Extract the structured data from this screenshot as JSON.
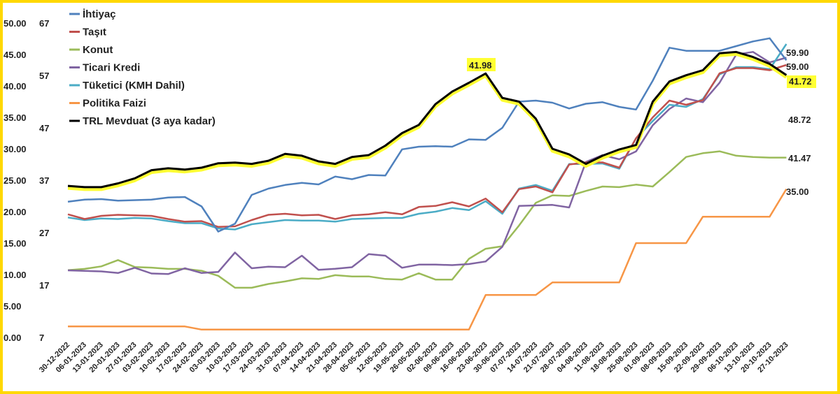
{
  "chart_data": {
    "type": "line",
    "title": "",
    "xlabel": "",
    "ylabel": "",
    "left_axis": {
      "ticks": [
        "50.00",
        "45.00",
        "40.00",
        "35.00",
        "30.00",
        "25.00",
        "20.00",
        "15.00",
        "10.00",
        "5.00",
        "0.00"
      ],
      "ylim": [
        0,
        50
      ]
    },
    "right_axis": {
      "ticks": [
        "67",
        "57",
        "47",
        "37",
        "27",
        "17",
        "7"
      ],
      "ylim": [
        7,
        67
      ]
    },
    "x": [
      "30-12-2022",
      "06-01-2023",
      "13-01-2023",
      "20-01-2023",
      "27-01-2023",
      "03-02-2023",
      "10-02-2023",
      "17-02-2023",
      "24-02-2023",
      "03-03-2023",
      "10-03-2023",
      "17-03-2023",
      "24-03-2023",
      "31-03-2023",
      "07-04-2023",
      "14-04-2023",
      "21-04-2023",
      "28-04-2023",
      "05-05-2023",
      "12-05-2023",
      "19-05-2023",
      "26-05-2023",
      "02-06-2023",
      "09-06-2023",
      "16-06-2023",
      "23-06-2023",
      "30-06-2023",
      "07-07-2023",
      "14-07-2023",
      "21-07-2023",
      "28-07-2023",
      "04-08-2023",
      "11-08-2023",
      "18-08-2023",
      "25-08-2023",
      "01-09-2023",
      "08-09-2023",
      "15-09-2023",
      "22-09-2023",
      "29-09-2023",
      "06-10-2023",
      "13-10-2023",
      "20-10-2023",
      "27-10-2023"
    ],
    "legend_position": "top-left",
    "grid": false,
    "series": [
      {
        "name": "İhtiyaç",
        "axis": "right",
        "color": "#4f81bd",
        "values": [
          32.9,
          33.3,
          33.4,
          33.1,
          33.2,
          33.3,
          33.7,
          33.8,
          32.0,
          27.2,
          28.7,
          34.2,
          35.4,
          36.1,
          36.5,
          36.2,
          37.7,
          37.2,
          38.0,
          37.9,
          42.9,
          43.4,
          43.5,
          43.4,
          44.8,
          44.7,
          47.0,
          52.0,
          52.2,
          51.8,
          50.7,
          51.6,
          51.9,
          51.0,
          50.5,
          56.0,
          62.3,
          61.7,
          61.7,
          61.7,
          62.6,
          63.5,
          64.1,
          59.9
        ]
      },
      {
        "name": "Taşıt",
        "axis": "right",
        "color": "#c0504d",
        "values": [
          30.5,
          29.6,
          30.2,
          30.4,
          30.3,
          30.2,
          29.6,
          29.1,
          29.2,
          28.1,
          28.2,
          29.4,
          30.4,
          30.6,
          30.3,
          30.4,
          29.6,
          30.3,
          30.5,
          30.9,
          30.5,
          31.9,
          32.1,
          32.8,
          32.0,
          33.5,
          30.9,
          35.3,
          35.8,
          34.7,
          40.0,
          40.4,
          40.4,
          39.4,
          45.0,
          49.0,
          52.2,
          51.4,
          52.3,
          57.4,
          58.4,
          58.4,
          58.0,
          59.0
        ]
      },
      {
        "name": "Konut",
        "axis": "left",
        "color": "#9bbb59",
        "values": [
          10.7,
          10.9,
          11.3,
          12.3,
          11.2,
          11.1,
          10.9,
          10.9,
          10.6,
          9.8,
          7.9,
          7.9,
          8.5,
          8.9,
          9.4,
          9.3,
          9.9,
          9.7,
          9.7,
          9.3,
          9.2,
          10.2,
          9.2,
          9.2,
          12.5,
          14.1,
          14.5,
          17.8,
          21.4,
          22.6,
          22.5,
          23.3,
          24.0,
          23.9,
          24.3,
          24.0,
          26.3,
          28.7,
          29.3,
          29.6,
          28.9,
          28.7,
          28.6,
          28.6
        ]
      },
      {
        "name": "Ticari Kredi",
        "axis": "right",
        "color": "#8064a2",
        "values": [
          19.8,
          19.7,
          19.6,
          19.3,
          20.3,
          19.2,
          19.1,
          20.2,
          19.3,
          19.5,
          23.2,
          20.2,
          20.5,
          20.4,
          22.6,
          19.9,
          20.1,
          20.4,
          22.9,
          22.6,
          20.3,
          20.9,
          20.9,
          20.8,
          21.0,
          21.5,
          24.3,
          32.1,
          32.2,
          32.3,
          31.8,
          40.5,
          41.8,
          41.0,
          42.5,
          47.5,
          50.6,
          52.6,
          51.9,
          55.6,
          61.0,
          61.5,
          59.5,
          60.4
        ]
      },
      {
        "name": "Tüketici (KMH Dahil)",
        "axis": "right",
        "color": "#4bacc6",
        "values": [
          29.9,
          29.4,
          29.7,
          29.6,
          29.8,
          29.7,
          29.2,
          28.8,
          28.8,
          27.8,
          27.6,
          28.6,
          29.0,
          29.4,
          29.3,
          29.3,
          29.1,
          29.6,
          29.7,
          29.8,
          29.8,
          30.6,
          31.0,
          31.7,
          31.3,
          33.0,
          30.6,
          35.4,
          36.1,
          35.0,
          40.1,
          40.1,
          40.2,
          39.2,
          45.0,
          48.3,
          51.4,
          51.0,
          52.5,
          57.2,
          58.6,
          58.6,
          58.2,
          63.0
        ]
      },
      {
        "name": "Politika Faizi",
        "axis": "left",
        "color": "#f79646",
        "values": [
          1.75,
          1.75,
          1.75,
          1.75,
          1.75,
          1.75,
          1.75,
          1.75,
          1.25,
          1.25,
          1.25,
          1.25,
          1.25,
          1.25,
          1.25,
          1.25,
          1.25,
          1.25,
          1.25,
          1.25,
          1.25,
          1.25,
          1.25,
          1.25,
          1.25,
          6.75,
          6.75,
          6.75,
          6.75,
          8.75,
          8.75,
          8.75,
          8.75,
          8.75,
          15.0,
          15.0,
          15.0,
          15.0,
          19.2,
          19.2,
          19.2,
          19.2,
          19.2,
          23.6
        ]
      },
      {
        "name": "TRL Mevduat (3 aya kadar)",
        "axis": "left",
        "color": "#000000",
        "values": [
          24.1,
          23.9,
          23.9,
          24.5,
          25.3,
          26.6,
          26.9,
          26.7,
          27.0,
          27.7,
          27.8,
          27.6,
          28.1,
          29.2,
          28.9,
          28.0,
          27.6,
          28.7,
          29.0,
          30.5,
          32.5,
          33.8,
          37.1,
          39.1,
          40.5,
          41.98,
          38.1,
          37.5,
          34.8,
          30.0,
          29.1,
          27.6,
          28.9,
          29.9,
          30.6,
          37.5,
          40.7,
          41.7,
          42.5,
          45.2,
          45.4,
          44.6,
          43.5,
          41.72
        ]
      }
    ],
    "end_labels": [
      "59.90",
      "59.00",
      "41.72",
      "48.72",
      "41.47",
      "35.00"
    ],
    "peak_label": "41.98"
  }
}
